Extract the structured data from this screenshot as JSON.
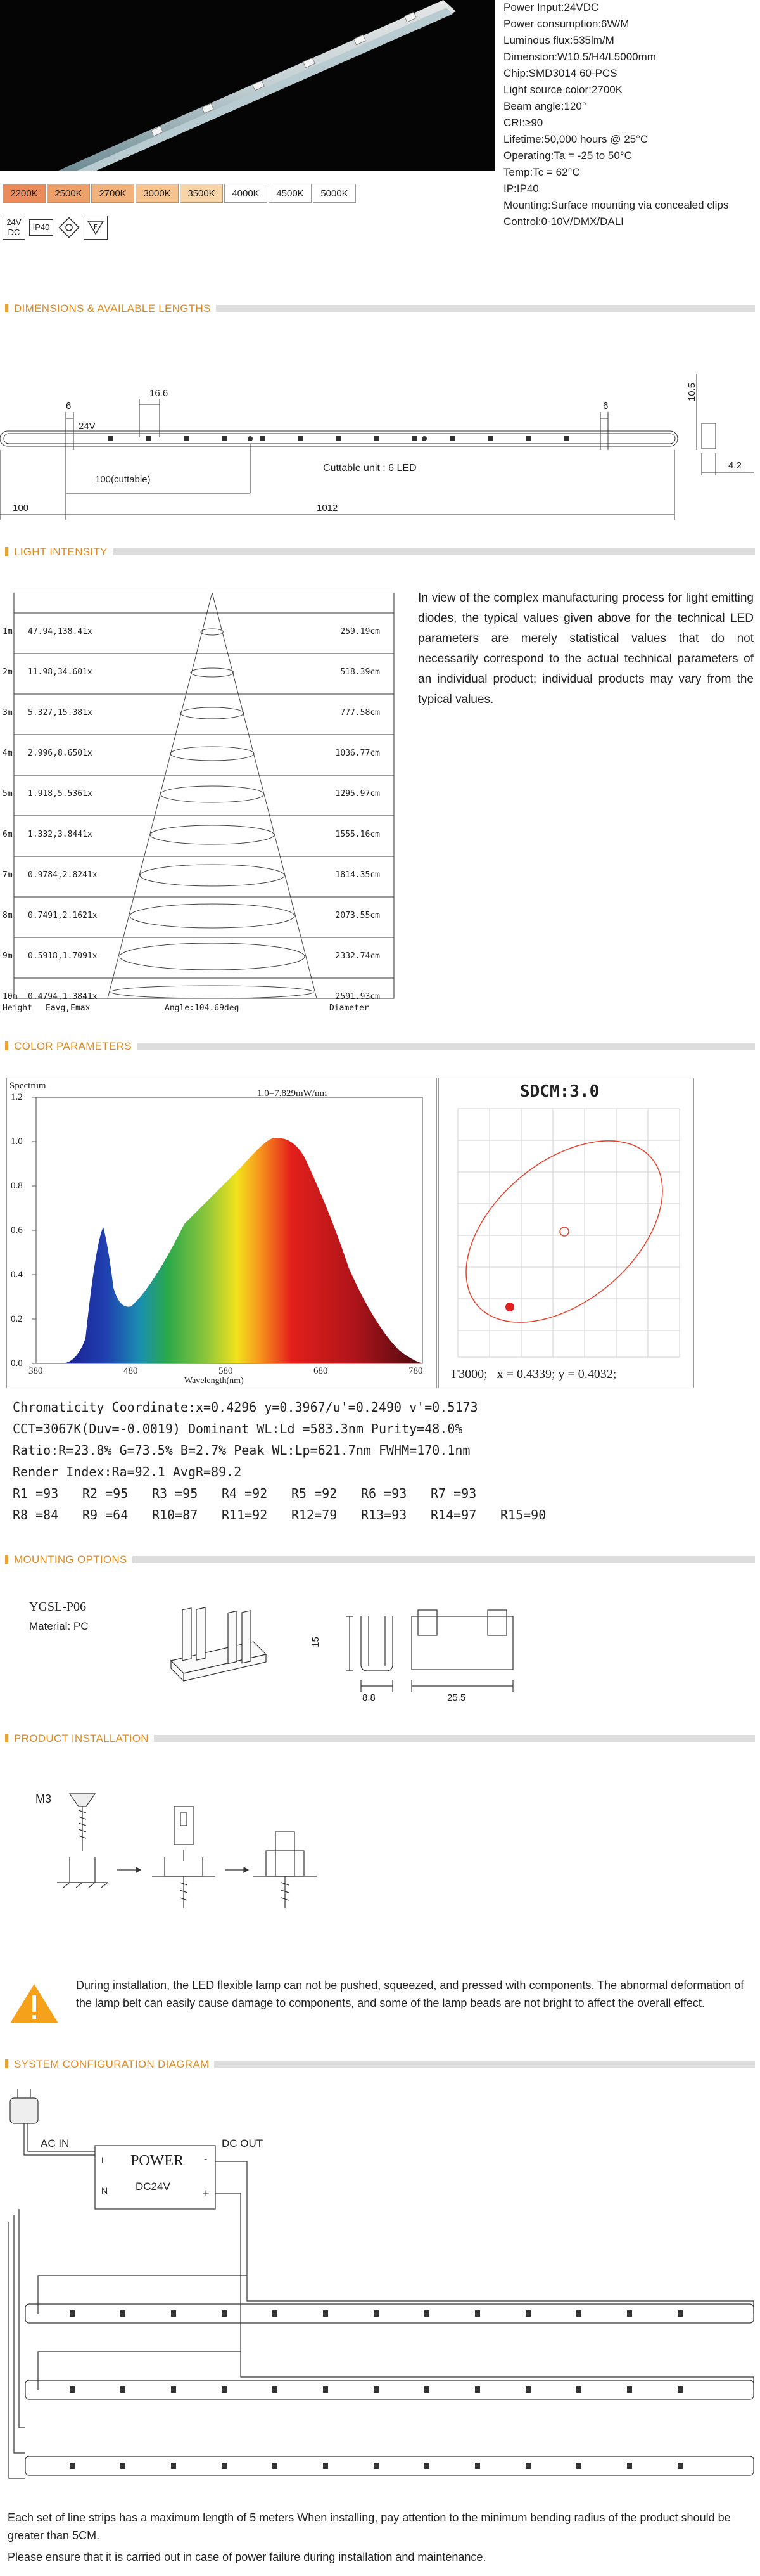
{
  "specs": [
    "Power Input:24VDC",
    "Power consumption:6W/M",
    "Luminous flux:535lm/M",
    "Dimension:W10.5/H4/L5000mm",
    "Chip:SMD3014 60-PCS",
    "Light source color:2700K",
    "Beam angle:120°",
    "CRI:≥90",
    "Lifetime:50,000 hours @ 25°C",
    "Operating:Ta = -25 to 50°C",
    "Temp:Tc = 62°C",
    "IP:IP40",
    "Mounting:Surface mounting via concealed clips",
    "Control:0-10V/DMX/DALI"
  ],
  "color_temps": [
    {
      "label": "2200K",
      "color": "#e98b5a"
    },
    {
      "label": "2500K",
      "color": "#eea06a"
    },
    {
      "label": "2700K",
      "color": "#f2b27c"
    },
    {
      "label": "3000K",
      "color": "#f6c38f"
    },
    {
      "label": "3500K",
      "color": "#f8d5a8"
    },
    {
      "label": "4000K",
      "color": "#ffffff"
    },
    {
      "label": "4500K",
      "color": "#ffffff"
    },
    {
      "label": "5000K",
      "color": "#ffffff"
    }
  ],
  "badges": {
    "voltage": "24V",
    "voltage_sub": "DC",
    "ip": "IP40"
  },
  "sections": {
    "dimensions": "DIMENSIONS & AVAILABLE LENGTHS",
    "light": "LIGHT INTENSITY",
    "color": "COLOR PARAMETERS",
    "mounting": "MOUNTING OPTIONS",
    "install": "PRODUCT INSTALLATION",
    "system": "SYSTEM CONFIGURATION DIAGRAM"
  },
  "dimensions": {
    "d16_6": "16.6",
    "d6_left": "6",
    "d6_right": "6",
    "v24": "24V",
    "d10_5": "10.5",
    "d4_2": "4.2",
    "cuttable100": "100(cuttable)",
    "cuttable_unit": "Cuttable unit : 6 LED",
    "d100": "100",
    "d1012": "1012"
  },
  "light_intensity": {
    "rows": [
      {
        "h": "1m",
        "e": "47.94,138.41x",
        "d": "259.19cm"
      },
      {
        "h": "2m",
        "e": "11.98,34.601x",
        "d": "518.39cm"
      },
      {
        "h": "3m",
        "e": "5.327,15.381x",
        "d": "777.58cm"
      },
      {
        "h": "4m",
        "e": "2.996,8.6501x",
        "d": "1036.77cm"
      },
      {
        "h": "5m",
        "e": "1.918,5.5361x",
        "d": "1295.97cm"
      },
      {
        "h": "6m",
        "e": "1.332,3.8441x",
        "d": "1555.16cm"
      },
      {
        "h": "7m",
        "e": "0.9784,2.8241x",
        "d": "1814.35cm"
      },
      {
        "h": "8m",
        "e": "0.7491,2.1621x",
        "d": "2073.55cm"
      },
      {
        "h": "9m",
        "e": "0.5918,1.7091x",
        "d": "2332.74cm"
      },
      {
        "h": "10m",
        "e": "0.4794,1.3841x",
        "d": "2591.93cm"
      }
    ],
    "footer_height": "Height",
    "footer_eavg": "Eavg,Emax",
    "footer_angle": "Angle:104.69deg",
    "footer_diameter": "Diameter",
    "note": "In view of the complex manufacturing process for light emitting diodes, the typical values given above for the technical LED parameters are merely statistical values that do not necessarily correspond to the  actual technical parameters of an individual product; individual products may vary from the typical values."
  },
  "spectrum": {
    "title": "Spectrum",
    "note": "1.0=7.829mW/nm",
    "xlabel": "Wavelength(nm)",
    "yticks": [
      "1.2",
      "1.0",
      "0.8",
      "0.6",
      "0.4",
      "0.2",
      "0.0"
    ],
    "xticks": [
      "380",
      "480",
      "580",
      "680",
      "780"
    ]
  },
  "sdcm": {
    "title": "SDCM:3.0",
    "footer": "F3000;   x = 0.4339; y = 0.4032;"
  },
  "chromaticity": [
    "Chromaticity Coordinate:x=0.4296  y=0.3967/u'=0.2490 v'=0.5173",
    "CCT=3067K(Duv=-0.0019) Dominant WL:Ld =583.3nm Purity=48.0%",
    "Ratio:R=23.8% G=73.5% B=2.7%  Peak WL:Lp=621.7nm  FWHM=170.1nm",
    "Render Index:Ra=92.1   AvgR=89.2"
  ],
  "render_r1": [
    "R1 =93",
    "R2 =95",
    "R3 =95",
    "R4 =92",
    "R5 =92",
    "R6 =93",
    "R7 =93"
  ],
  "render_r2": [
    "R8 =84",
    "R9 =64",
    "R10=87",
    "R11=92",
    "R12=79",
    "R13=93",
    "R14=97",
    "R15=90"
  ],
  "mounting": {
    "model": "YGSL-P06",
    "material": "Material:  PC",
    "d15": "15",
    "d8_8": "8.8",
    "d25_5": "25.5"
  },
  "install": {
    "screw": "M3",
    "warning": "During installation, the LED flexible lamp can not be pushed, squeezed, and pressed with components. The abnormal deformation of the lamp belt can easily cause damage to components, and some of the lamp beads are not bright to affect the overall effect."
  },
  "system": {
    "ac_in": "AC IN",
    "dc_out": "DC OUT",
    "power": "POWER",
    "dc24v": "DC24V",
    "l": "L",
    "n": "N",
    "minus": "-",
    "plus": "+",
    "note1": "Each set of line strips has a maximum length of 5 meters When installing, pay attention to the minimum bending radius of the product should be greater than 5CM.",
    "note2": "Please ensure that it is carried out in case of power failure during installation and maintenance."
  }
}
